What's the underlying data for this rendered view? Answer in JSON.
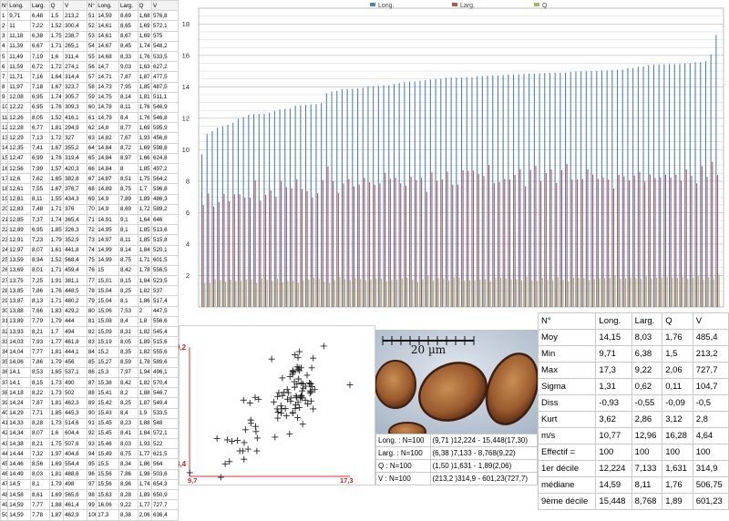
{
  "raw_table": {
    "headers": [
      "N°",
      "Long.",
      "Larg.",
      "Q",
      "V",
      "N°",
      "Long.",
      "Larg.",
      "Q",
      "V"
    ],
    "rows": [
      [
        "1",
        "9,71",
        "6,48",
        "1,5",
        "213,2",
        "51",
        "14,59",
        "8,69",
        "1,68",
        "576,8"
      ],
      [
        "2",
        "11",
        "7,22",
        "1,52",
        "300,4",
        "52",
        "14,61",
        "8,65",
        "1,69",
        "572,1"
      ],
      [
        "3",
        "11,18",
        "6,38",
        "1,75",
        "238,7",
        "53",
        "14,61",
        "8,67",
        "1,69",
        "575"
      ],
      [
        "4",
        "11,39",
        "6,67",
        "1,71",
        "265,1",
        "54",
        "14,67",
        "8,45",
        "1,74",
        "548,2"
      ],
      [
        "5",
        "11,49",
        "7,19",
        "1,6",
        "311,4",
        "55",
        "14,68",
        "8,33",
        "1,76",
        "533,5"
      ],
      [
        "6",
        "11,59",
        "6,72",
        "1,72",
        "274,1",
        "56",
        "14,7",
        "9,03",
        "1,63",
        "627,2"
      ],
      [
        "7",
        "11,71",
        "7,16",
        "1,64",
        "314,4",
        "57",
        "14,71",
        "7,87",
        "1,87",
        "477,5"
      ],
      [
        "8",
        "11,97",
        "7,18",
        "1,67",
        "323,7",
        "58",
        "14,73",
        "7,95",
        "1,85",
        "487,5"
      ],
      [
        "9",
        "12,08",
        "6,95",
        "1,74",
        "305,7",
        "59",
        "14,75",
        "8,14",
        "1,81",
        "511,1"
      ],
      [
        "10",
        "12,22",
        "6,95",
        "1,76",
        "309,3",
        "60",
        "14,78",
        "8,11",
        "1,76",
        "546,9"
      ],
      [
        "11",
        "12,26",
        "8,05",
        "1,52",
        "416,1",
        "61",
        "14,79",
        "8,4",
        "1,76",
        "546,8"
      ],
      [
        "12",
        "12,28",
        "6,77",
        "1,81",
        "294,9",
        "62",
        "14,8",
        "8,77",
        "1,69",
        "595,9"
      ],
      [
        "13",
        "12,29",
        "7,13",
        "1,72",
        "327",
        "63",
        "14,82",
        "7,67",
        "1,93",
        "456,8"
      ],
      [
        "14",
        "12,35",
        "7,41",
        "1,67",
        "355,2",
        "64",
        "14,84",
        "8,72",
        "1,69",
        "598,8"
      ],
      [
        "15",
        "12,47",
        "6,99",
        "1,78",
        "319,4",
        "65",
        "14,84",
        "8,97",
        "1,66",
        "624,8"
      ],
      [
        "16",
        "12,56",
        "7,99",
        "1,57",
        "420,3",
        "66",
        "14,84",
        "8",
        "1,85",
        "497,2"
      ],
      [
        "17",
        "12,6",
        "7,62",
        "1,65",
        "382,8",
        "67",
        "14,87",
        "8,51",
        "1,75",
        "564,2"
      ],
      [
        "18",
        "12,61",
        "7,55",
        "1,67",
        "376,7",
        "68",
        "14,89",
        "8,75",
        "1,7",
        "596,8"
      ],
      [
        "19",
        "12,81",
        "8,11",
        "1,55",
        "434,3",
        "69",
        "14,9",
        "7,89",
        "1,89",
        "486,3"
      ],
      [
        "20",
        "12,83",
        "7,48",
        "1,71",
        "376",
        "70",
        "14,9",
        "8,69",
        "1,72",
        "589,2"
      ],
      [
        "21",
        "12,85",
        "7,37",
        "1,74",
        "365,4",
        "71",
        "14,91",
        "9,1",
        "1,64",
        "646"
      ],
      [
        "22",
        "12,89",
        "6,95",
        "1,85",
        "326,3",
        "72",
        "14,95",
        "8,1",
        "1,85",
        "513,6"
      ],
      [
        "23",
        "12,91",
        "7,23",
        "1,79",
        "352,9",
        "73",
        "14,97",
        "8,11",
        "1,85",
        "515,8"
      ],
      [
        "24",
        "12,97",
        "8,07",
        "1,61",
        "441,8",
        "74",
        "14,99",
        "8,14",
        "1,84",
        "520,1"
      ],
      [
        "25",
        "13,59",
        "8,94",
        "1,52",
        "568,4",
        "75",
        "14,99",
        "8,75",
        "1,71",
        "601,5"
      ],
      [
        "26",
        "13,69",
        "8,01",
        "1,71",
        "459,4",
        "76",
        "15",
        "8,42",
        "1,78",
        "556,5"
      ],
      [
        "27",
        "13,75",
        "7,25",
        "1,91",
        "381,1",
        "77",
        "15,01",
        "8,15",
        "1,84",
        "523,5"
      ],
      [
        "28",
        "13,85",
        "7,86",
        "1,76",
        "448,5",
        "78",
        "15,04",
        "8,25",
        "1,82",
        "537"
      ],
      [
        "29",
        "13,87",
        "8,13",
        "1,71",
        "480,2",
        "79",
        "15,04",
        "8,1",
        "1,86",
        "517,4"
      ],
      [
        "30",
        "13,88",
        "7,66",
        "1,83",
        "429,2",
        "80",
        "15,06",
        "7,53",
        "2",
        "447,5"
      ],
      [
        "31",
        "13,89",
        "7,79",
        "1,79",
        "444",
        "81",
        "15,08",
        "8,4",
        "1,8",
        "556,6"
      ],
      [
        "32",
        "13,93",
        "8,21",
        "1,7",
        "494",
        "82",
        "15,09",
        "8,31",
        "1,82",
        "545,4"
      ],
      [
        "33",
        "14,03",
        "7,93",
        "1,77",
        "461,8",
        "83",
        "15,19",
        "8,05",
        "1,89",
        "515,6"
      ],
      [
        "34",
        "14,04",
        "7,77",
        "1,81",
        "444,1",
        "84",
        "15,2",
        "8,35",
        "1,82",
        "555,6"
      ],
      [
        "35",
        "14,06",
        "7,86",
        "1,79",
        "456",
        "85",
        "15,27",
        "8,59",
        "1,78",
        "589,6"
      ],
      [
        "36",
        "14,1",
        "8,53",
        "1,65",
        "537,1",
        "86",
        "15,3",
        "7,97",
        "1,94",
        "496,1"
      ],
      [
        "37",
        "14,1",
        "8,15",
        "1,73",
        "490",
        "87",
        "15,38",
        "8,42",
        "1,82",
        "570,4"
      ],
      [
        "38",
        "14,18",
        "8,22",
        "1,73",
        "502",
        "88",
        "15,41",
        "8,2",
        "1,88",
        "546,7"
      ],
      [
        "39",
        "14,24",
        "7,87",
        "1,81",
        "462,3",
        "89",
        "15,42",
        "8,25",
        "1,87",
        "549,4"
      ],
      [
        "40",
        "14,29",
        "7,71",
        "1,85",
        "445,3",
        "90",
        "15,43",
        "8,4",
        "1,9",
        "533,5"
      ],
      [
        "41",
        "14,33",
        "8,28",
        "1,73",
        "514,6",
        "91",
        "15,45",
        "8,23",
        "1,88",
        "548"
      ],
      [
        "42",
        "14,34",
        "8,07",
        "1,6",
        "604,4",
        "92",
        "15,45",
        "8,41",
        "1,84",
        "572,1"
      ],
      [
        "43",
        "14,38",
        "8,21",
        "1,75",
        "507,6",
        "93",
        "15,46",
        "8,03",
        "1,93",
        "522"
      ],
      [
        "44",
        "14,44",
        "7,32",
        "1,97",
        "404,8",
        "94",
        "15,49",
        "8,75",
        "1,77",
        "621,5"
      ],
      [
        "45",
        "14,46",
        "8,56",
        "1,69",
        "554,4",
        "95",
        "15,5",
        "8,34",
        "1,86",
        "564"
      ],
      [
        "46",
        "14,49",
        "8,03",
        "1,81",
        "488,6",
        "96",
        "15,56",
        "7,86",
        "1,98",
        "503,6"
      ],
      [
        "47",
        "14,5",
        "8,1",
        "1,79",
        "498",
        "97",
        "15,56",
        "8,96",
        "1,74",
        "654,3"
      ],
      [
        "48",
        "14,58",
        "8,61",
        "1,69",
        "565,6",
        "98",
        "15,63",
        "8,28",
        "1,89",
        "650,9"
      ],
      [
        "49",
        "14,59",
        "7,77",
        "1,88",
        "461,4",
        "99",
        "16,06",
        "9,22",
        "1,77",
        "727,7"
      ],
      [
        "50",
        "14,59",
        "7,78",
        "1,87",
        "462,9",
        "100",
        "17,3",
        "8,38",
        "2,06",
        "636,4"
      ]
    ]
  },
  "chart_data": [
    {
      "type": "bar",
      "legend": [
        "Long.",
        "Larg.",
        "Q"
      ],
      "legend_placement": "top",
      "colors": [
        "#4f81bd",
        "#c0504d",
        "#9bbb59"
      ],
      "y_ticks": [
        "2",
        "4",
        "6",
        "8",
        "10",
        "12",
        "14",
        "16",
        "18"
      ],
      "ylim": [
        0,
        19
      ],
      "grid": true
    },
    {
      "type": "scatter",
      "x_label_min": "9,7",
      "x_label_max": "17,3",
      "y_label_min": "6,4",
      "y_label_max": "9,2",
      "xlim": [
        9.7,
        17.3
      ],
      "ylim": [
        6.4,
        9.2
      ],
      "axis_color": "#e03030"
    }
  ],
  "photo": {
    "scale_label": "20 µm"
  },
  "range_rows": [
    [
      "Long. : N=100",
      "(9,71 )12,224 - 15,448(17,30)"
    ],
    [
      "Larg. : N=100",
      "(6,38 )7,133 - 8,768(9,22)"
    ],
    [
      "Q : N=100",
      "(1,50 )1,631 - 1,89(2,06)"
    ],
    [
      "V : N=100",
      "(213,2 )314,9 - 601,23(727,7)"
    ]
  ],
  "stats": {
    "headers": [
      "N°",
      "Long.",
      "Larg.",
      "Q",
      "V"
    ],
    "rows": [
      [
        "Moy",
        "14,15",
        "8,03",
        "1,76",
        "485,4"
      ],
      [
        "Min",
        "9,71",
        "6,38",
        "1,5",
        "213,2"
      ],
      [
        "Max",
        "17,3",
        "9,22",
        "2,06",
        "727,7"
      ],
      [
        "Sigma",
        "1,31",
        "0,62",
        "0,11",
        "104,7"
      ],
      [
        "Diss",
        "-0,93",
        "-0,55",
        "-0,09",
        "-0,5"
      ],
      [
        "Kurt",
        "3,62",
        "2,86",
        "3,12",
        "2,8"
      ],
      [
        "m/s",
        "10,77",
        "12,96",
        "16,28",
        "4,64"
      ],
      [
        "Effectif =",
        "100",
        "100",
        "100",
        "100"
      ],
      [
        "1er décile",
        "12,224",
        "7,133",
        "1,631",
        "314,9"
      ],
      [
        "médiane",
        "14,59",
        "8,11",
        "1,76",
        "506,75"
      ],
      [
        "9ème décile",
        "15,448",
        "8,768",
        "1,89",
        "601,23"
      ]
    ]
  }
}
